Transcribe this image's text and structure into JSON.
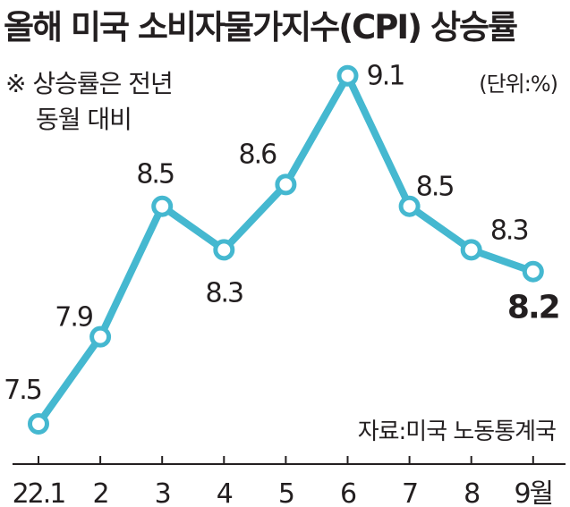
{
  "title": "올해 미국 소비자물가지수(CPI) 상승률",
  "note_line1": "※ 상승률은 전년",
  "note_line2": "동월 대비",
  "unit": "(단위:%)",
  "source": "자료:미국 노동통계국",
  "colors": {
    "line": "#45b8d0",
    "text": "#231f20"
  },
  "chart_data": {
    "type": "line",
    "categories": [
      "22.1",
      "2",
      "3",
      "4",
      "5",
      "6",
      "7",
      "8",
      "9월"
    ],
    "values": [
      7.5,
      7.9,
      8.5,
      8.3,
      8.6,
      9.1,
      8.5,
      8.3,
      8.2
    ],
    "value_labels": [
      "7.5",
      "7.9",
      "8.5",
      "8.3",
      "8.6",
      "9.1",
      "8.5",
      "8.3",
      "8.2"
    ],
    "highlight_last": true,
    "grid": false,
    "legend": "none"
  }
}
